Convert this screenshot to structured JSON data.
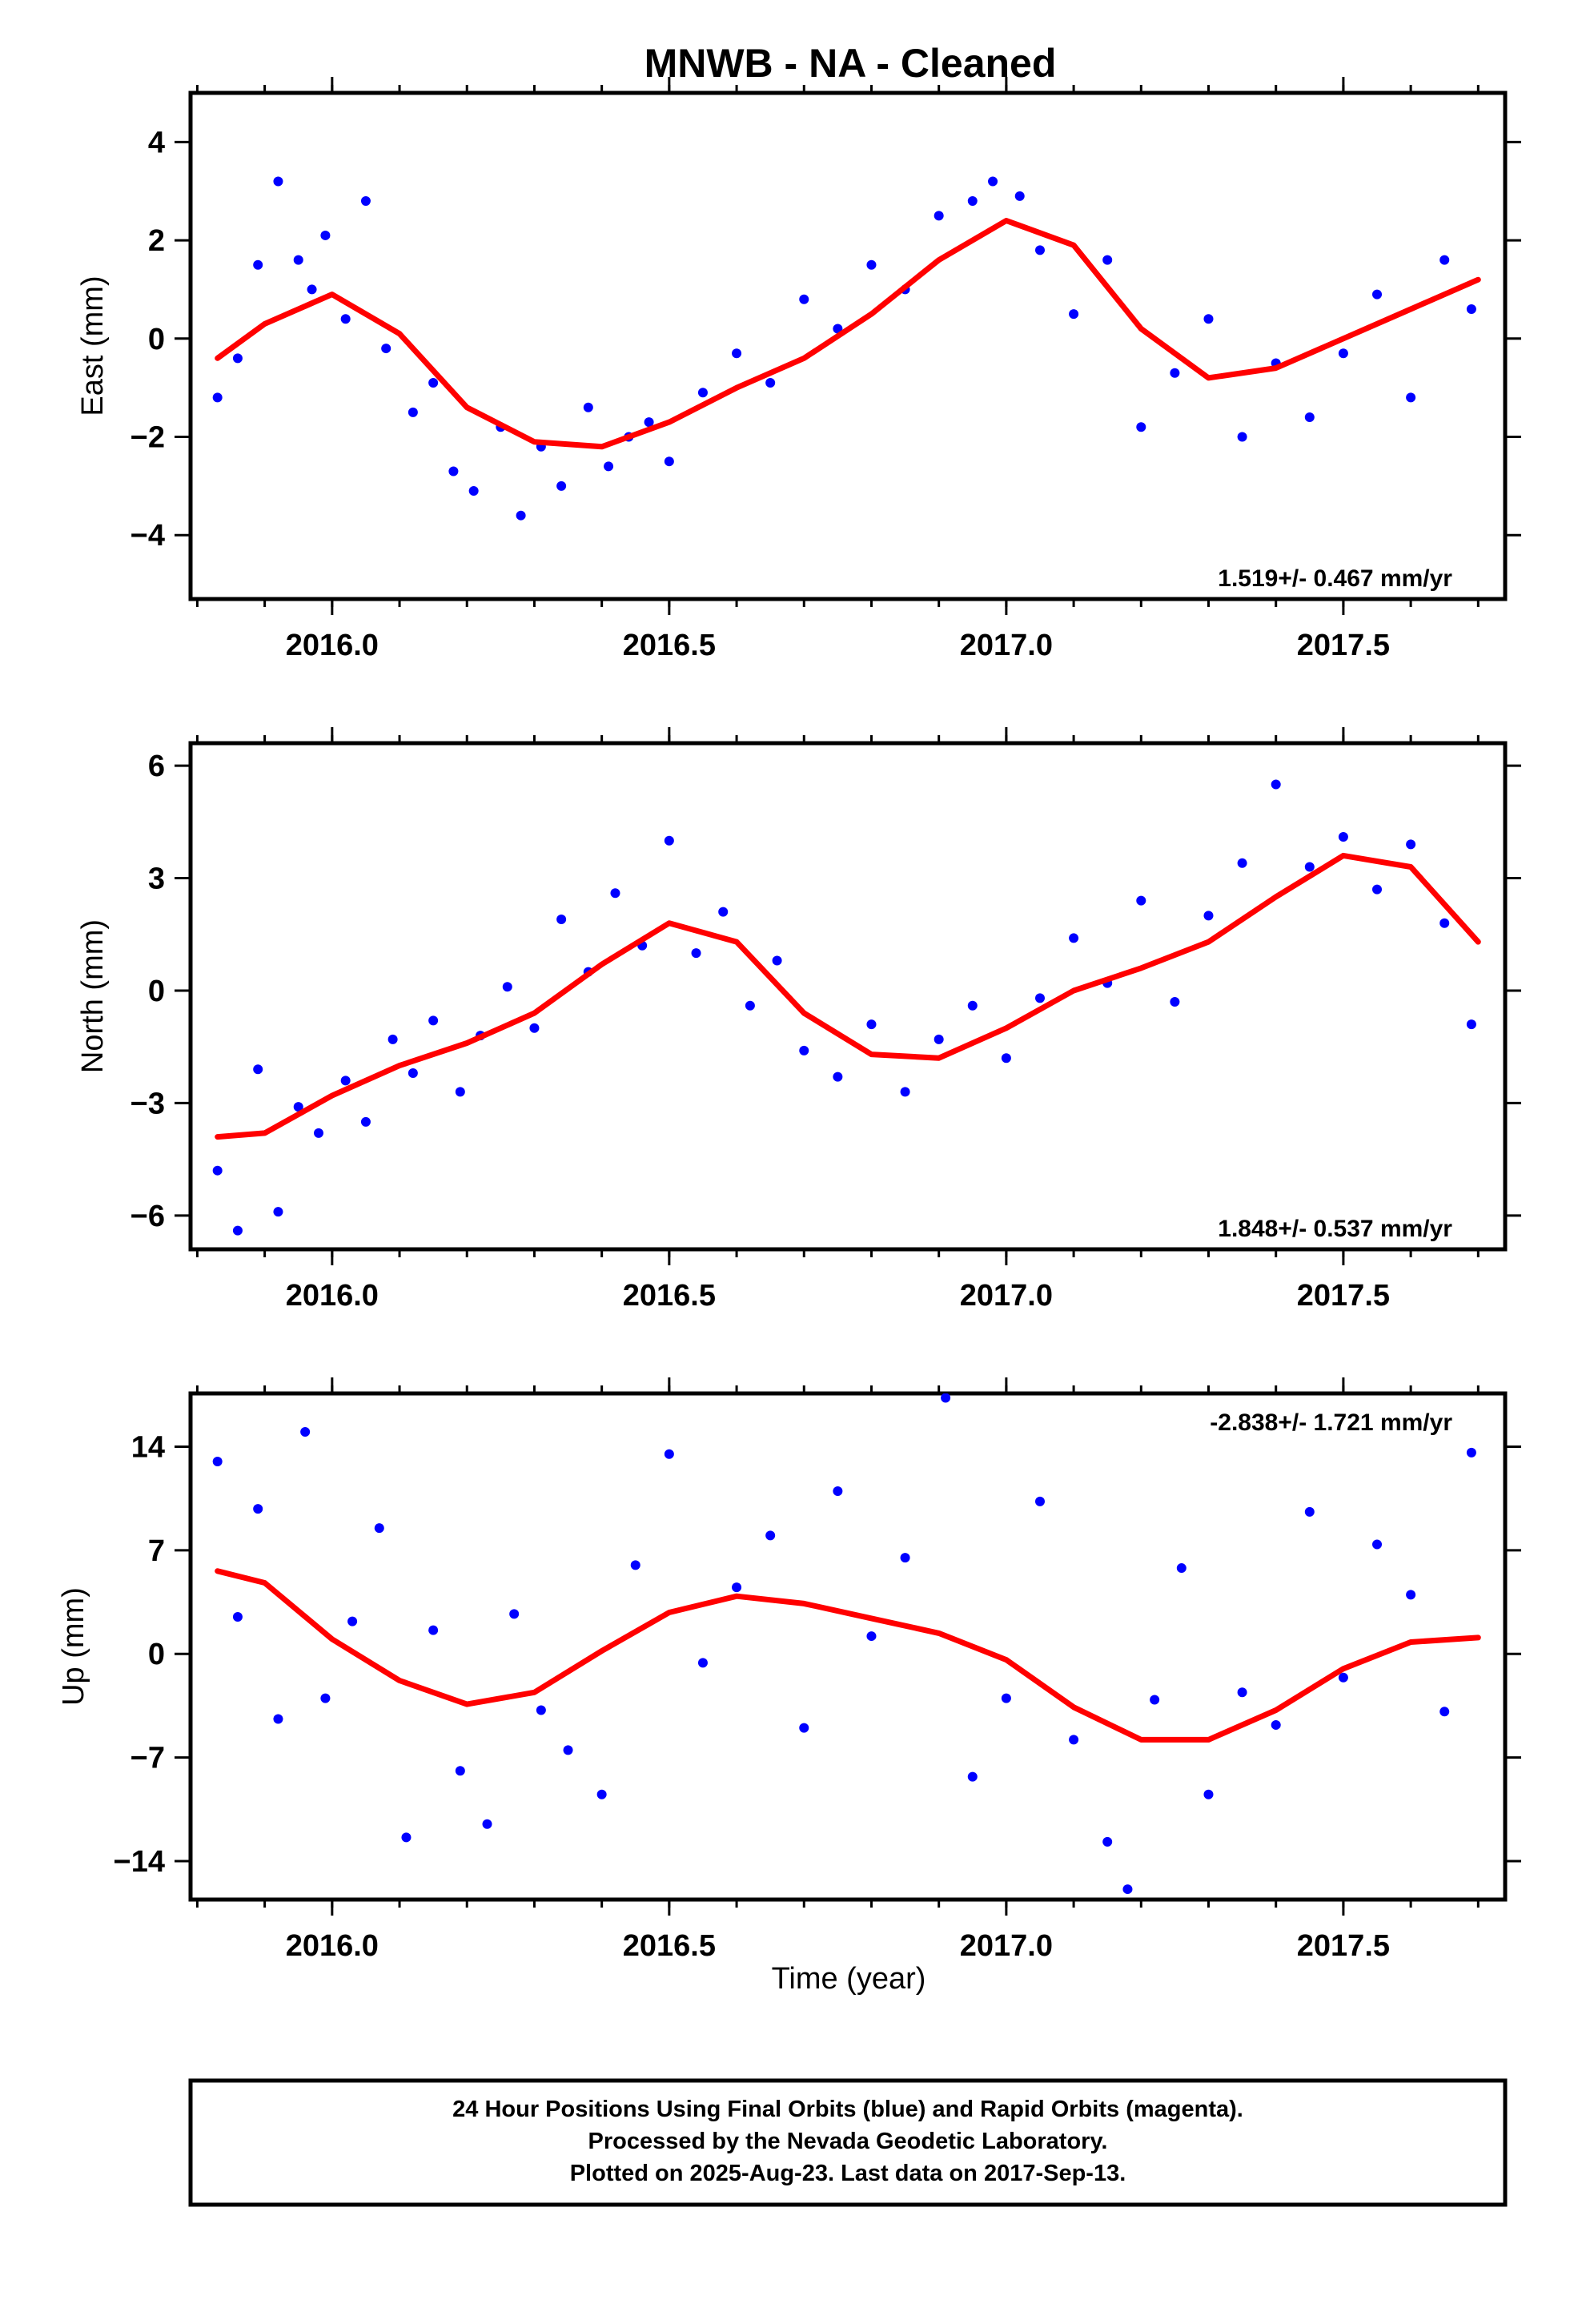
{
  "title": "MNWB  - NA - Cleaned",
  "xlabel": "Time (year)",
  "footer": [
    "24 Hour Positions Using Final Orbits (blue) and Rapid Orbits (magenta).",
    "Processed by the Nevada Geodetic Laboratory.",
    "Plotted on 2025-Aug-23. Last data on 2017-Sep-13."
  ],
  "colors": {
    "points": "#0000ff",
    "fit": "#ff0000",
    "axes": "#000000"
  },
  "chart_data": [
    {
      "type": "scatter",
      "ylabel": "East (mm)",
      "xlim": [
        2015.79,
        2017.74
      ],
      "ylim": [
        -5.3,
        5.0
      ],
      "xticks": [
        2016.0,
        2016.5,
        2017.0,
        2017.5
      ],
      "xtick_labels": [
        "2016.0",
        "2016.5",
        "2017.0",
        "2017.5"
      ],
      "yticks": [
        -4,
        -2,
        0,
        2,
        4
      ],
      "ytick_labels": [
        "−4",
        "−2",
        "0",
        "2",
        "4"
      ],
      "rate_label": "1.519+/- 0.467 mm/yr",
      "rate_position": "bottom-right",
      "points": {
        "x": [
          2015.83,
          2015.86,
          2015.89,
          2015.92,
          2015.95,
          2015.97,
          2015.99,
          2016.02,
          2016.05,
          2016.08,
          2016.12,
          2016.15,
          2016.18,
          2016.21,
          2016.25,
          2016.28,
          2016.31,
          2016.34,
          2016.38,
          2016.41,
          2016.44,
          2016.47,
          2016.5,
          2016.55,
          2016.6,
          2016.65,
          2016.7,
          2016.75,
          2016.8,
          2016.85,
          2016.9,
          2016.95,
          2016.98,
          2017.02,
          2017.05,
          2017.1,
          2017.15,
          2017.2,
          2017.25,
          2017.3,
          2017.35,
          2017.4,
          2017.45,
          2017.5,
          2017.55,
          2017.6,
          2017.65,
          2017.69
        ],
        "y": [
          -1.2,
          -0.4,
          1.5,
          3.2,
          1.6,
          1.0,
          2.1,
          0.4,
          2.8,
          -0.2,
          -1.5,
          -0.9,
          -2.7,
          -3.1,
          -1.8,
          -3.6,
          -2.2,
          -3.0,
          -1.4,
          -2.6,
          -2.0,
          -1.7,
          -2.5,
          -1.1,
          -0.3,
          -0.9,
          0.8,
          0.2,
          1.5,
          1.0,
          2.5,
          2.8,
          3.2,
          2.9,
          1.8,
          0.5,
          1.6,
          -1.8,
          -0.7,
          0.4,
          -2.0,
          -0.5,
          -1.6,
          -0.3,
          0.9,
          -1.2,
          1.6,
          0.6
        ]
      },
      "fit": {
        "x": [
          2015.83,
          2015.9,
          2016.0,
          2016.1,
          2016.2,
          2016.3,
          2016.4,
          2016.5,
          2016.6,
          2016.7,
          2016.8,
          2016.9,
          2017.0,
          2017.1,
          2017.2,
          2017.3,
          2017.4,
          2017.5,
          2017.6,
          2017.7
        ],
        "y": [
          -0.4,
          0.3,
          0.9,
          0.1,
          -1.4,
          -2.1,
          -2.2,
          -1.7,
          -1.0,
          -0.4,
          0.5,
          1.6,
          2.4,
          1.9,
          0.2,
          -0.8,
          -0.6,
          0.0,
          0.6,
          1.2
        ]
      }
    },
    {
      "type": "scatter",
      "ylabel": "North (mm)",
      "xlim": [
        2015.79,
        2017.74
      ],
      "ylim": [
        -6.9,
        6.6
      ],
      "xticks": [
        2016.0,
        2016.5,
        2017.0,
        2017.5
      ],
      "xtick_labels": [
        "2016.0",
        "2016.5",
        "2017.0",
        "2017.5"
      ],
      "yticks": [
        -6,
        -3,
        0,
        3,
        6
      ],
      "ytick_labels": [
        "−6",
        "−3",
        "0",
        "3",
        "6"
      ],
      "rate_label": "1.848+/- 0.537 mm/yr",
      "rate_position": "bottom-right",
      "points": {
        "x": [
          2015.83,
          2015.86,
          2015.89,
          2015.92,
          2015.95,
          2015.98,
          2016.02,
          2016.05,
          2016.09,
          2016.12,
          2016.15,
          2016.19,
          2016.22,
          2016.26,
          2016.3,
          2016.34,
          2016.38,
          2016.42,
          2016.46,
          2016.5,
          2016.54,
          2016.58,
          2016.62,
          2016.66,
          2016.7,
          2016.75,
          2016.8,
          2016.85,
          2016.9,
          2016.95,
          2017.0,
          2017.05,
          2017.1,
          2017.15,
          2017.2,
          2017.25,
          2017.3,
          2017.35,
          2017.4,
          2017.45,
          2017.5,
          2017.55,
          2017.6,
          2017.65,
          2017.69
        ],
        "y": [
          -4.8,
          -6.4,
          -2.1,
          -5.9,
          -3.1,
          -3.8,
          -2.4,
          -3.5,
          -1.3,
          -2.2,
          -0.8,
          -2.7,
          -1.2,
          0.1,
          -1.0,
          1.9,
          0.5,
          2.6,
          1.2,
          4.0,
          1.0,
          2.1,
          -0.4,
          0.8,
          -1.6,
          -2.3,
          -0.9,
          -2.7,
          -1.3,
          -0.4,
          -1.8,
          -0.2,
          1.4,
          0.2,
          2.4,
          -0.3,
          2.0,
          3.4,
          5.5,
          3.3,
          4.1,
          2.7,
          3.9,
          1.8,
          -0.9
        ]
      },
      "fit": {
        "x": [
          2015.83,
          2015.9,
          2016.0,
          2016.1,
          2016.2,
          2016.3,
          2016.4,
          2016.5,
          2016.6,
          2016.7,
          2016.8,
          2016.9,
          2017.0,
          2017.1,
          2017.2,
          2017.3,
          2017.4,
          2017.5,
          2017.6,
          2017.7
        ],
        "y": [
          -3.9,
          -3.8,
          -2.8,
          -2.0,
          -1.4,
          -0.6,
          0.7,
          1.8,
          1.3,
          -0.6,
          -1.7,
          -1.8,
          -1.0,
          0.0,
          0.6,
          1.3,
          2.5,
          3.6,
          3.3,
          1.3
        ]
      }
    },
    {
      "type": "scatter",
      "ylabel": "Up (mm)",
      "xlim": [
        2015.79,
        2017.74
      ],
      "ylim": [
        -16.6,
        17.6
      ],
      "xticks": [
        2016.0,
        2016.5,
        2017.0,
        2017.5
      ],
      "xtick_labels": [
        "2016.0",
        "2016.5",
        "2017.0",
        "2017.5"
      ],
      "yticks": [
        -14,
        -7,
        0,
        7,
        14
      ],
      "ytick_labels": [
        "−14",
        "−7",
        "0",
        "7",
        "14"
      ],
      "rate_label": "-2.838+/- 1.721 mm/yr",
      "rate_position": "top-right",
      "points": {
        "x": [
          2015.83,
          2015.86,
          2015.89,
          2015.92,
          2015.96,
          2015.99,
          2016.03,
          2016.07,
          2016.11,
          2016.15,
          2016.19,
          2016.23,
          2016.27,
          2016.31,
          2016.35,
          2016.4,
          2016.45,
          2016.5,
          2016.55,
          2016.6,
          2016.65,
          2016.7,
          2016.75,
          2016.8,
          2016.85,
          2016.91,
          2016.95,
          2017.0,
          2017.05,
          2017.1,
          2017.15,
          2017.18,
          2017.22,
          2017.26,
          2017.3,
          2017.35,
          2017.4,
          2017.45,
          2017.5,
          2017.55,
          2017.6,
          2017.65,
          2017.69
        ],
        "y": [
          13.0,
          2.5,
          9.8,
          -4.4,
          15.0,
          -3.0,
          2.2,
          8.5,
          -12.4,
          1.6,
          -7.9,
          -11.5,
          2.7,
          -3.8,
          -6.5,
          -9.5,
          6.0,
          13.5,
          -0.6,
          4.5,
          8.0,
          -5.0,
          11.0,
          1.2,
          6.5,
          17.3,
          -8.3,
          -3.0,
          10.3,
          -5.8,
          -12.7,
          -15.9,
          -3.1,
          5.8,
          -9.5,
          -2.6,
          -4.8,
          9.6,
          -1.6,
          7.4,
          4.0,
          -3.9,
          13.6
        ]
      },
      "fit": {
        "x": [
          2015.83,
          2015.9,
          2016.0,
          2016.1,
          2016.2,
          2016.3,
          2016.4,
          2016.5,
          2016.6,
          2016.7,
          2016.8,
          2016.9,
          2017.0,
          2017.1,
          2017.2,
          2017.3,
          2017.4,
          2017.5,
          2017.6,
          2017.7
        ],
        "y": [
          5.6,
          4.8,
          1.0,
          -1.8,
          -3.4,
          -2.6,
          0.2,
          2.8,
          3.9,
          3.4,
          2.4,
          1.4,
          -0.4,
          -3.6,
          -5.8,
          -5.8,
          -3.8,
          -1.0,
          0.8,
          1.1
        ]
      }
    }
  ]
}
